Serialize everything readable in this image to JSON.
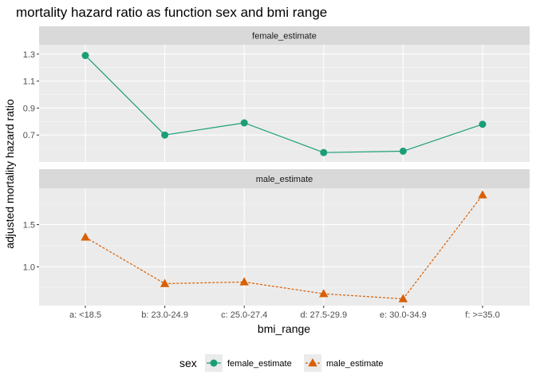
{
  "chart_data": {
    "type": "line",
    "title": "mortality hazard ratio as function sex and bmi range",
    "xlabel": "bmi_range",
    "ylabel": "adjusted mortality hazard ratio",
    "categories": [
      "a: <18.5",
      "b: 23.0-24.9",
      "c: 25.0-27.4",
      "d: 27.5-29.9",
      "e: 30.0-34.9",
      "f: >=35.0"
    ],
    "facets": [
      {
        "name": "female_estimate",
        "series": "female_estimate",
        "values": [
          1.29,
          0.7,
          0.79,
          0.57,
          0.58,
          0.78
        ],
        "ylim": [
          0.5,
          1.37
        ],
        "yticks": [
          0.7,
          0.9,
          1.1,
          1.3
        ],
        "ytick_labels": [
          "0.7",
          "0.9",
          "1.1",
          "1.3"
        ],
        "color": "#1b9e77",
        "marker": "circle",
        "line": "solid"
      },
      {
        "name": "male_estimate",
        "series": "male_estimate",
        "values": [
          1.35,
          0.8,
          0.82,
          0.68,
          0.62,
          1.85
        ],
        "ylim": [
          0.54,
          1.93
        ],
        "yticks": [
          1.0,
          1.5
        ],
        "ytick_labels": [
          "1.0",
          "1.5"
        ],
        "color": "#d95f02",
        "marker": "triangle",
        "line": "dashed"
      }
    ],
    "legend": {
      "title": "sex",
      "position": "bottom",
      "entries": [
        {
          "label": "female_estimate",
          "color": "#1b9e77",
          "marker": "circle",
          "line": "solid"
        },
        {
          "label": "male_estimate",
          "color": "#d95f02",
          "marker": "triangle",
          "line": "dashed"
        }
      ]
    },
    "panel_background": "#ebebeb",
    "strip_background": "#d9d9d9",
    "grid": true
  }
}
